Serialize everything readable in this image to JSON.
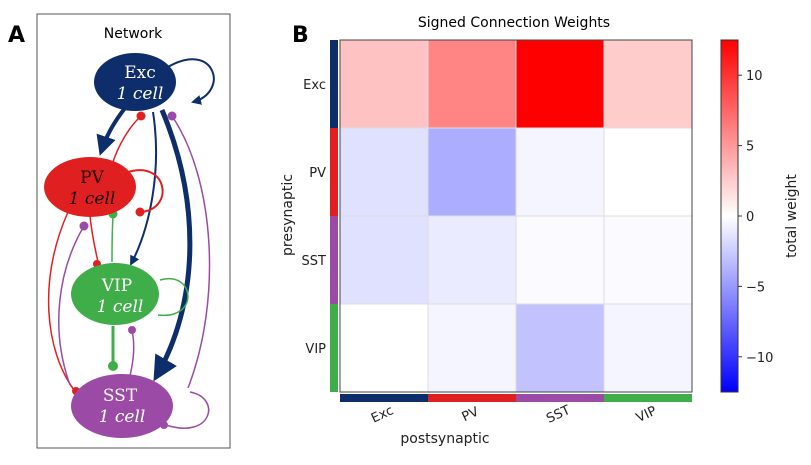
{
  "panel_a": {
    "letter": "A",
    "title": "Network",
    "nodes": [
      {
        "id": "exc",
        "name": "Exc",
        "sub": "1 cell",
        "color": "#0d2d6b",
        "text_color": "#ffffff"
      },
      {
        "id": "pv",
        "name": "PV",
        "sub": "1 cell",
        "color": "#e02020",
        "text_color": "#1a0000"
      },
      {
        "id": "vip",
        "name": "VIP",
        "sub": "1 cell",
        "color": "#3fae49",
        "text_color": "#ffffff"
      },
      {
        "id": "sst",
        "name": "SST",
        "sub": "1 cell",
        "color": "#9b4aa6",
        "text_color": "#ffffff"
      }
    ]
  },
  "panel_b": {
    "letter": "B"
  },
  "chart_data": {
    "type": "heatmap",
    "title": "Signed Connection Weights",
    "xlabel": "postsynaptic",
    "ylabel": "presynaptic",
    "x_categories": [
      "Exc",
      "PV",
      "SST",
      "VIP"
    ],
    "y_categories": [
      "Exc",
      "PV",
      "SST",
      "VIP"
    ],
    "category_colors": {
      "Exc": "#0d2d6b",
      "PV": "#e02020",
      "SST": "#9b4aa6",
      "VIP": "#3fae49"
    },
    "values": [
      [
        3,
        6,
        12.5,
        2.5
      ],
      [
        -1.5,
        -4,
        -0.5,
        0
      ],
      [
        -1.5,
        -1,
        -0.2,
        -0.2
      ],
      [
        0,
        -0.5,
        -3,
        -0.5
      ]
    ],
    "colorbar": {
      "label": "total weight",
      "range": [
        -12.5,
        12.5
      ],
      "ticks": [
        10,
        5,
        0,
        -5,
        -10
      ],
      "tick_labels": [
        "10",
        "5",
        "0",
        "−5",
        "−10"
      ],
      "colormap": "bwr"
    }
  }
}
